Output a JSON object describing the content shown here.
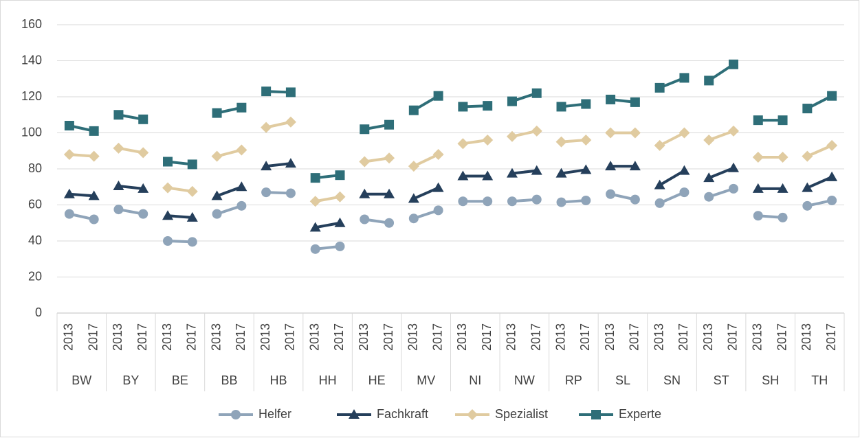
{
  "chart_data": {
    "type": "line",
    "categories": [
      "2013",
      "2017",
      "2013",
      "2017",
      "2013",
      "2017",
      "2013",
      "2017",
      "2013",
      "2017",
      "2013",
      "2017",
      "2013",
      "2017",
      "2013",
      "2017",
      "2013",
      "2017",
      "2013",
      "2017",
      "2013",
      "2017",
      "2013",
      "2017",
      "2013",
      "2017",
      "2013",
      "2017",
      "2013",
      "2017",
      "2013",
      "2017"
    ],
    "groups": [
      "BW",
      "BY",
      "BE",
      "BB",
      "HB",
      "HH",
      "HE",
      "MV",
      "NI",
      "NW",
      "RP",
      "SL",
      "SN",
      "ST",
      "SH",
      "TH"
    ],
    "ylim": [
      0,
      160
    ],
    "yticks": [
      0,
      20,
      40,
      60,
      80,
      100,
      120,
      140,
      160
    ],
    "grid": true,
    "legend": "bottom",
    "series": [
      {
        "name": "Helfer",
        "color": "#8fa4b9",
        "marker": "circle",
        "values": [
          55,
          52,
          57.5,
          55,
          40,
          39.5,
          55,
          59.5,
          67,
          66.5,
          35.5,
          37,
          52,
          50,
          52.5,
          57,
          62,
          62,
          62,
          63,
          61.5,
          62.5,
          66,
          63,
          61,
          67,
          64.5,
          69,
          54,
          53,
          59.5,
          62.5
        ]
      },
      {
        "name": "Fachkraft",
        "color": "#253f5b",
        "marker": "triangle",
        "values": [
          66,
          65,
          70.5,
          69,
          54,
          53,
          65,
          70,
          81.5,
          83,
          47.5,
          50,
          66,
          66,
          63.5,
          69.5,
          76,
          76,
          77.5,
          79,
          77.5,
          79.5,
          81.5,
          81.5,
          71,
          79,
          75,
          80.5,
          69,
          69,
          69.5,
          75.5
        ]
      },
      {
        "name": "Spezialist",
        "color": "#e0cba0",
        "marker": "diamond",
        "values": [
          88,
          87,
          91.5,
          89,
          69.5,
          67.5,
          87,
          90.5,
          103,
          106,
          62,
          64.5,
          84,
          86,
          81.5,
          88,
          94,
          96,
          98,
          101,
          95,
          96,
          100,
          100,
          93,
          100,
          96,
          101,
          86.5,
          86.5,
          87,
          93
        ]
      },
      {
        "name": "Experte",
        "color": "#2e6e78",
        "marker": "square",
        "values": [
          104,
          101,
          110,
          107.5,
          84,
          82.5,
          111,
          114,
          123,
          122.5,
          75,
          76.5,
          102,
          104.5,
          112.5,
          120.5,
          114.5,
          115,
          117.5,
          122,
          114.5,
          116,
          118.5,
          117,
          125,
          130.5,
          129,
          138,
          107,
          107,
          113.5,
          120.5
        ]
      }
    ]
  }
}
